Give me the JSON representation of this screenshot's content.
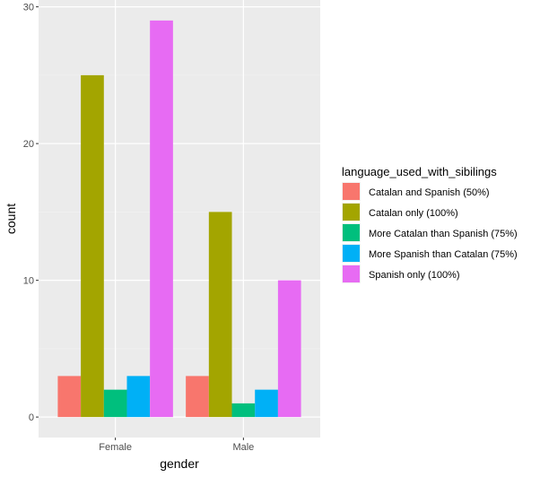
{
  "chart_data": {
    "type": "bar",
    "categories": [
      "Female",
      "Male"
    ],
    "series": [
      {
        "name": "Catalan and Spanish (50%)",
        "color": "#F8766D",
        "values": [
          3,
          3
        ]
      },
      {
        "name": "Catalan only (100%)",
        "color": "#A3A500",
        "values": [
          25,
          15
        ]
      },
      {
        "name": "More Catalan than Spanish (75%)",
        "color": "#00BF7D",
        "values": [
          2,
          1
        ]
      },
      {
        "name": "More Spanish than Catalan (75%)",
        "color": "#00B0F6",
        "values": [
          3,
          2
        ]
      },
      {
        "name": "Spanish only (100%)",
        "color": "#E76BF3",
        "values": [
          29,
          10
        ]
      }
    ],
    "xlabel": "gender",
    "ylabel": "count",
    "ylim": [
      -1.5,
      30.5
    ],
    "yticks": [
      0,
      10,
      20,
      30
    ],
    "legend_title": "language_used_with_sibilings",
    "legend_position": "right",
    "grid": true
  }
}
